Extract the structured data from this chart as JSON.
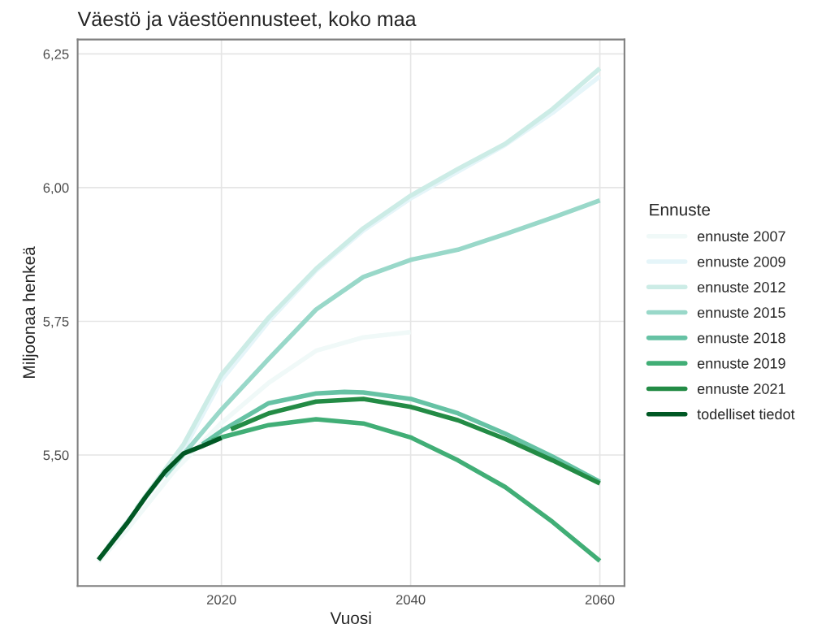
{
  "chart_data": {
    "type": "line",
    "title": "Väestö ja väestöennusteet, koko maa",
    "xlabel": "Vuosi",
    "ylabel": "Miljoonaa henkeä",
    "legend_title": "Ennuste",
    "legend": "right",
    "grid": true,
    "line_style": "solid",
    "marker": "none",
    "xlim": [
      2004.8,
      2062.6
    ],
    "xticks": [
      2020,
      2040,
      2060
    ],
    "ylim": [
      5.255,
      6.277
    ],
    "yticks": [
      {
        "value": 5.5,
        "label": "5,50"
      },
      {
        "value": 5.75,
        "label": "5,75"
      },
      {
        "value": 6.0,
        "label": "6,00"
      },
      {
        "value": 6.25,
        "label": "6,25"
      }
    ],
    "series": [
      {
        "name": "ennuste 2007",
        "color": "#f0f9f8",
        "x": [
          2007,
          2010,
          2015,
          2020,
          2025,
          2030,
          2035,
          2040
        ],
        "values": [
          5.3,
          5.36,
          5.47,
          5.56,
          5.635,
          5.695,
          5.72,
          5.73
        ]
      },
      {
        "name": "ennuste 2009",
        "color": "#e5f5f9",
        "x": [
          2008,
          2012,
          2016,
          2020,
          2025,
          2030,
          2035,
          2040,
          2045,
          2050,
          2055,
          2060
        ],
        "values": [
          5.33,
          5.42,
          5.51,
          5.64,
          5.75,
          5.845,
          5.92,
          5.98,
          6.03,
          6.08,
          6.14,
          6.208
        ]
      },
      {
        "name": "ennuste 2012",
        "color": "#ccece6",
        "x": [
          2011,
          2016,
          2020,
          2025,
          2030,
          2035,
          2040,
          2045,
          2050,
          2055,
          2060
        ],
        "values": [
          5.4,
          5.52,
          5.65,
          5.757,
          5.848,
          5.924,
          5.985,
          6.035,
          6.082,
          6.147,
          6.223
        ]
      },
      {
        "name": "ennuste 2015",
        "color": "#99d8c9",
        "x": [
          2014,
          2020,
          2025,
          2030,
          2035,
          2040,
          2045,
          2050,
          2055,
          2060
        ],
        "values": [
          5.46,
          5.585,
          5.68,
          5.772,
          5.833,
          5.865,
          5.884,
          5.913,
          5.944,
          5.976
        ]
      },
      {
        "name": "ennuste 2018",
        "color": "#66c2a4",
        "x": [
          2018,
          2020,
          2025,
          2030,
          2033,
          2035,
          2040,
          2045,
          2050,
          2055,
          2060
        ],
        "values": [
          5.52,
          5.545,
          5.597,
          5.615,
          5.618,
          5.617,
          5.605,
          5.578,
          5.54,
          5.497,
          5.45
        ]
      },
      {
        "name": "ennuste 2019",
        "color": "#41ae76",
        "x": [
          2019,
          2020,
          2025,
          2030,
          2035,
          2040,
          2045,
          2050,
          2055,
          2060
        ],
        "values": [
          5.527,
          5.533,
          5.556,
          5.567,
          5.559,
          5.533,
          5.49,
          5.44,
          5.375,
          5.302
        ]
      },
      {
        "name": "ennuste 2021",
        "color": "#238b45",
        "x": [
          2021,
          2025,
          2030,
          2035,
          2040,
          2045,
          2050,
          2055,
          2060
        ],
        "values": [
          5.548,
          5.578,
          5.6,
          5.605,
          5.59,
          5.565,
          5.53,
          5.49,
          5.447
        ]
      },
      {
        "name": "todelliset tiedot",
        "color": "#005824",
        "x": [
          2007,
          2010,
          2012,
          2014,
          2016,
          2018,
          2020
        ],
        "values": [
          5.304,
          5.372,
          5.422,
          5.468,
          5.503,
          5.517,
          5.532
        ]
      }
    ]
  }
}
